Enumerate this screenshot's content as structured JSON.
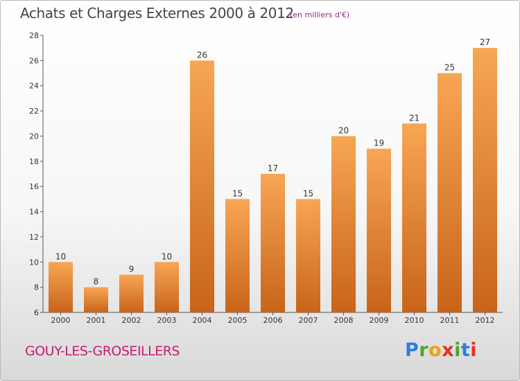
{
  "title": "Achats et Charges Externes 2000 à 2012",
  "subtitle": "(en milliers d'€)",
  "commune": "GOUY-LES-GROSEILLERS",
  "logo": {
    "letters": [
      "P",
      "r",
      "o",
      "x",
      "i",
      "t",
      "i"
    ],
    "colors": [
      "#2e7fd9",
      "#49a82c",
      "#f0a010",
      "#e8301c",
      "#49a82c",
      "#2e7fd9",
      "#e8301c"
    ]
  },
  "colors": {
    "bar_top": "#f7a654",
    "bar_bottom": "#c8641a",
    "title": "#444444",
    "subtitle": "#8a2b82",
    "commune": "#c31e6e"
  },
  "chart_data": {
    "type": "bar",
    "categories": [
      "2000",
      "2001",
      "2002",
      "2003",
      "2004",
      "2005",
      "2006",
      "2007",
      "2008",
      "2009",
      "2010",
      "2011",
      "2012"
    ],
    "values": [
      10,
      8,
      9,
      10,
      26,
      15,
      17,
      15,
      20,
      19,
      21,
      25,
      27
    ],
    "ylim": [
      6,
      28
    ],
    "yticks": [
      6,
      8,
      10,
      12,
      14,
      16,
      18,
      20,
      22,
      24,
      26,
      28
    ],
    "grid": false,
    "legend": "none"
  }
}
